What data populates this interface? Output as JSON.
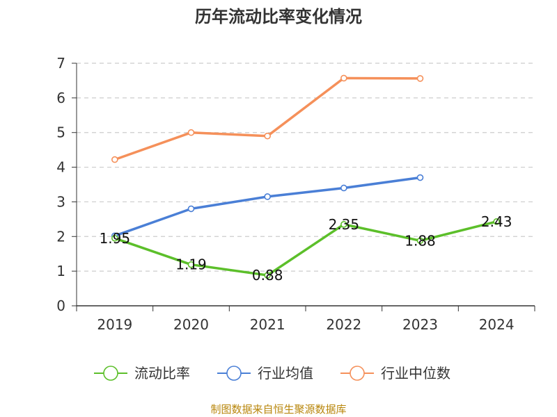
{
  "chart_data": {
    "type": "line",
    "title": "历年流动比率变化情况",
    "xlabel": "",
    "ylabel": "",
    "categories": [
      "2019",
      "2020",
      "2021",
      "2022",
      "2023",
      "2024"
    ],
    "ylim": [
      0,
      7
    ],
    "yticks": [
      "0",
      "1",
      "2",
      "3",
      "4",
      "5",
      "6",
      "7"
    ],
    "grid": true,
    "legend_position": "bottom",
    "series": [
      {
        "name": "流动比率",
        "color": "#5cbf2a",
        "values": [
          1.95,
          1.19,
          0.88,
          2.35,
          1.88,
          2.43
        ],
        "labels": [
          "1.95",
          "1.19",
          "0.88",
          "2.35",
          "1.88",
          "2.43"
        ]
      },
      {
        "name": "行业均值",
        "color": "#4a7fd6",
        "values": [
          2.02,
          2.8,
          3.15,
          3.4,
          3.7,
          null
        ]
      },
      {
        "name": "行业中位数",
        "color": "#f5905a",
        "values": [
          4.22,
          5.0,
          4.9,
          6.57,
          6.56,
          null
        ]
      }
    ],
    "source": "制图数据来自恒生聚源数据库"
  }
}
